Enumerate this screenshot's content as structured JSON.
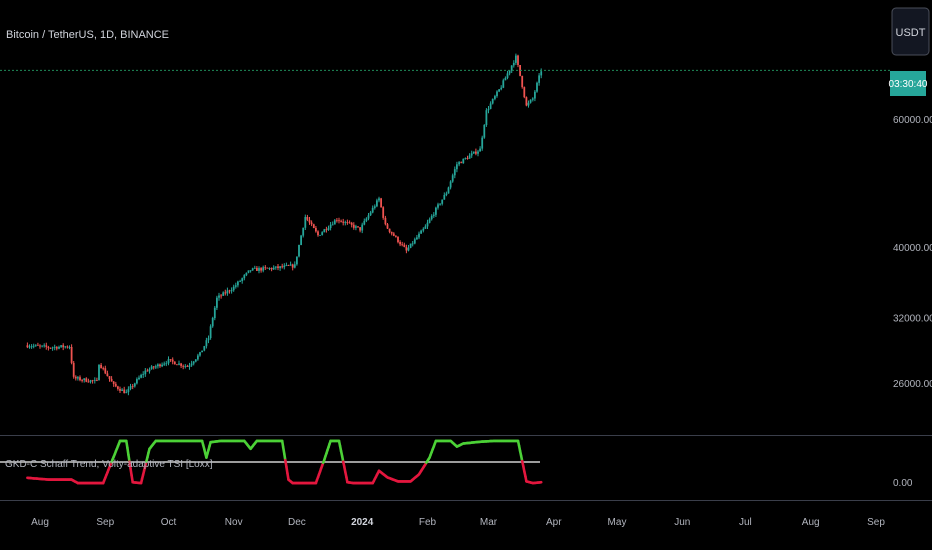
{
  "header": {
    "symbol_title": "Bitcoin / TetherUS, 1D, BINANCE"
  },
  "price_scale": {
    "currency_badge": "USDT",
    "countdown": "03:30:40",
    "labels": [
      "60000.00",
      "40000.00",
      "32000.00",
      "26000.00"
    ]
  },
  "indicator": {
    "title": "GKD-C Schaff Trend, Volty-adaptive TSI [Loxx]",
    "scale_label": "0.00"
  },
  "colors": {
    "up": "#26a69a",
    "down": "#ef5350",
    "bull": "#4cd137",
    "bear": "#e3173e",
    "grid_line": "#3a3e4a",
    "last_price_line": "#1f8a5a",
    "countdown_bg": "#26a69a"
  },
  "chart_data": [
    {
      "type": "candlestick",
      "title": "Bitcoin / TetherUS, 1D, BINANCE",
      "yscale": "log",
      "price_labels": [
        60000,
        40000,
        32000,
        26000
      ],
      "x_tick_labels": [
        "Aug",
        "Sep",
        "Oct",
        "Nov",
        "Dec",
        "2024",
        "Feb",
        "Mar",
        "Apr",
        "May",
        "Jun",
        "Jul",
        "Aug",
        "Sep"
      ],
      "close_path": [
        [
          "2023-07-26",
          29300
        ],
        [
          "2023-08-05",
          29100
        ],
        [
          "2023-08-15",
          29200
        ],
        [
          "2023-08-17",
          26400
        ],
        [
          "2023-08-28",
          26100
        ],
        [
          "2023-08-29",
          27700
        ],
        [
          "2023-09-05",
          25800
        ],
        [
          "2023-09-11",
          25200
        ],
        [
          "2023-09-20",
          27000
        ],
        [
          "2023-10-01",
          27900
        ],
        [
          "2023-10-10",
          27400
        ],
        [
          "2023-10-16",
          28500
        ],
        [
          "2023-10-20",
          30000
        ],
        [
          "2023-10-24",
          34000
        ],
        [
          "2023-11-01",
          35200
        ],
        [
          "2023-11-09",
          37200
        ],
        [
          "2023-11-20",
          37400
        ],
        [
          "2023-11-30",
          37700
        ],
        [
          "2023-12-05",
          44000
        ],
        [
          "2023-12-11",
          41500
        ],
        [
          "2023-12-20",
          43700
        ],
        [
          "2023-12-31",
          42300
        ],
        [
          "2024-01-09",
          46600
        ],
        [
          "2024-01-12",
          42800
        ],
        [
          "2024-01-22",
          39500
        ],
        [
          "2024-01-31",
          42600
        ],
        [
          "2024-02-10",
          47500
        ],
        [
          "2024-02-15",
          52000
        ],
        [
          "2024-02-26",
          54500
        ],
        [
          "2024-02-29",
          61500
        ],
        [
          "2024-03-07",
          66500
        ],
        [
          "2024-03-14",
          73000
        ],
        [
          "2024-03-19",
          62500
        ],
        [
          "2024-03-22",
          64000
        ],
        [
          "2024-03-26",
          70000
        ]
      ],
      "last_close": 70000
    },
    {
      "type": "line",
      "title": "GKD-C Schaff Trend, Volty-adaptive TSI [Loxx]",
      "ylim": [
        0,
        100
      ],
      "midline": 50,
      "scale_label": "0.00",
      "values_path": [
        [
          "2023-07-26",
          14
        ],
        [
          "2023-08-05",
          10
        ],
        [
          "2023-08-16",
          10
        ],
        [
          "2023-08-19",
          2
        ],
        [
          "2023-08-31",
          2
        ],
        [
          "2023-09-04",
          50
        ],
        [
          "2023-09-08",
          98
        ],
        [
          "2023-09-11",
          98
        ],
        [
          "2023-09-14",
          4
        ],
        [
          "2023-09-18",
          2
        ],
        [
          "2023-09-22",
          80
        ],
        [
          "2023-09-25",
          98
        ],
        [
          "2023-10-17",
          98
        ],
        [
          "2023-10-19",
          60
        ],
        [
          "2023-10-21",
          95
        ],
        [
          "2023-10-26",
          98
        ],
        [
          "2023-11-06",
          98
        ],
        [
          "2023-11-09",
          80
        ],
        [
          "2023-11-12",
          98
        ],
        [
          "2023-11-24",
          98
        ],
        [
          "2023-11-27",
          10
        ],
        [
          "2023-11-29",
          2
        ],
        [
          "2023-12-10",
          2
        ],
        [
          "2023-12-14",
          55
        ],
        [
          "2023-12-17",
          98
        ],
        [
          "2023-12-21",
          98
        ],
        [
          "2023-12-25",
          4
        ],
        [
          "2023-12-28",
          2
        ],
        [
          "2024-01-06",
          2
        ],
        [
          "2024-01-09",
          30
        ],
        [
          "2024-01-13",
          15
        ],
        [
          "2024-01-18",
          6
        ],
        [
          "2024-01-24",
          6
        ],
        [
          "2024-01-28",
          22
        ],
        [
          "2024-02-02",
          60
        ],
        [
          "2024-02-05",
          98
        ],
        [
          "2024-02-12",
          98
        ],
        [
          "2024-02-15",
          85
        ],
        [
          "2024-02-18",
          92
        ],
        [
          "2024-02-26",
          96
        ],
        [
          "2024-03-04",
          98
        ],
        [
          "2024-03-15",
          98
        ],
        [
          "2024-03-19",
          6
        ],
        [
          "2024-03-22",
          2
        ],
        [
          "2024-03-26",
          4
        ]
      ]
    }
  ]
}
